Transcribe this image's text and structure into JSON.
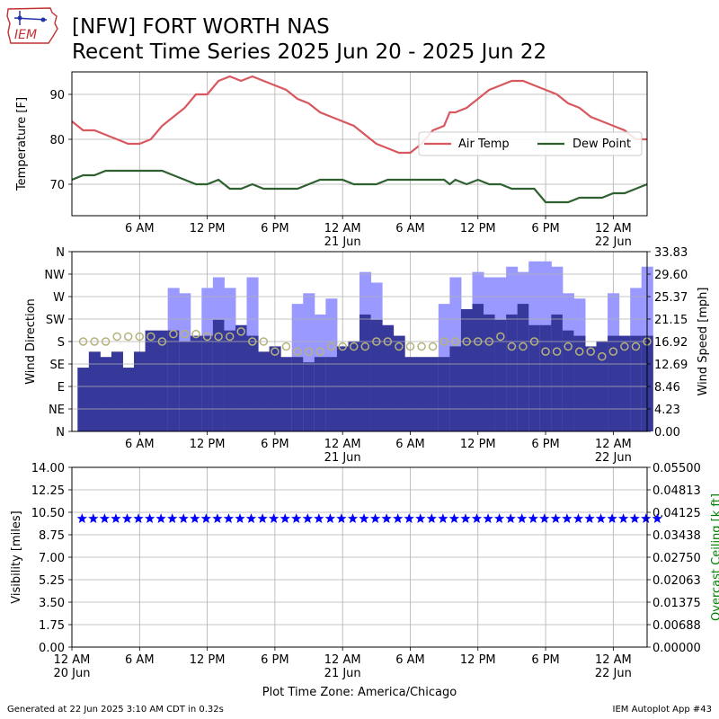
{
  "header": {
    "title_line1": "[NFW] FORT WORTH NAS",
    "title_line2": "Recent Time Series 2025 Jun 20 - 2025 Jun 22",
    "logo_text": "IEM"
  },
  "footer": {
    "generated": "Generated at 22 Jun 2025 3:10 AM CDT in 0.32s",
    "app": "IEM Autoplot App #43",
    "timezone": "Plot Time Zone: America/Chicago"
  },
  "colors": {
    "air_temp": "#d9575e",
    "dew_point": "#2f6130",
    "wind_gust": "#9a99ff",
    "wind_speed": "#36389a",
    "wind_dir": "#b6b27c",
    "visibility": "#0000ff",
    "ceiling_axis": "#008000",
    "grid": "#b0b0b0"
  },
  "chart_data": [
    {
      "type": "line",
      "panel": "temperature",
      "ylabel": "Temperature [F]",
      "ylim": [
        63,
        95
      ],
      "yticks": [
        70,
        80,
        90
      ],
      "xlim_hours": [
        0,
        51
      ],
      "xticks": [
        {
          "h": 6,
          "label": "6 AM"
        },
        {
          "h": 12,
          "label": "12 PM"
        },
        {
          "h": 18,
          "label": "6 PM"
        },
        {
          "h": 24,
          "label": "12 AM",
          "sub": "21 Jun"
        },
        {
          "h": 30,
          "label": "6 AM"
        },
        {
          "h": 36,
          "label": "12 PM"
        },
        {
          "h": 42,
          "label": "6 PM"
        },
        {
          "h": 48,
          "label": "12 AM",
          "sub": "22 Jun"
        }
      ],
      "legend": "right",
      "series": [
        {
          "name": "Air Temp",
          "x": [
            0,
            1,
            2,
            3,
            4,
            5,
            6,
            7,
            8,
            9,
            10,
            11,
            12,
            13,
            14,
            15,
            16,
            17,
            18,
            19,
            20,
            21,
            22,
            23,
            24,
            25,
            26,
            27,
            28,
            29,
            30,
            31,
            32,
            33,
            33.5,
            34,
            35,
            36,
            37,
            38,
            39,
            40,
            41,
            42,
            43,
            44,
            45,
            46,
            47,
            48,
            49,
            50,
            51
          ],
          "y": [
            84,
            82,
            82,
            81,
            80,
            79,
            79,
            80,
            83,
            85,
            87,
            90,
            90,
            93,
            94,
            93,
            94,
            93,
            92,
            91,
            89,
            88,
            86,
            85,
            84,
            83,
            81,
            79,
            78,
            77,
            77,
            79,
            82,
            83,
            86,
            86,
            87,
            89,
            91,
            92,
            93,
            93,
            92,
            91,
            90,
            88,
            87,
            85,
            84,
            83,
            82,
            80,
            80
          ]
        },
        {
          "name": "Dew Point",
          "x": [
            0,
            1,
            2,
            3,
            4,
            5,
            6,
            7,
            8,
            9,
            10,
            11,
            12,
            13,
            14,
            15,
            16,
            17,
            18,
            19,
            20,
            21,
            22,
            23,
            24,
            25,
            26,
            27,
            28,
            29,
            30,
            31,
            32,
            33,
            33.5,
            34,
            35,
            36,
            37,
            38,
            39,
            40,
            41,
            42,
            43,
            44,
            45,
            46,
            47,
            48,
            49,
            50,
            51
          ],
          "y": [
            71,
            72,
            72,
            73,
            73,
            73,
            73,
            73,
            73,
            72,
            71,
            70,
            70,
            71,
            69,
            69,
            70,
            69,
            69,
            69,
            69,
            70,
            71,
            71,
            71,
            70,
            70,
            70,
            71,
            71,
            71,
            71,
            71,
            71,
            70,
            71,
            70,
            71,
            70,
            70,
            69,
            69,
            69,
            66,
            66,
            66,
            67,
            67,
            67,
            68,
            68,
            69,
            70
          ]
        }
      ]
    },
    {
      "type": "bar",
      "panel": "wind",
      "ylabel_left": "Wind Direction",
      "ylabel_right": "Wind Speed [mph]",
      "dir_ticks": [
        "N",
        "NE",
        "E",
        "SE",
        "S",
        "SW",
        "W",
        "NW",
        "N"
      ],
      "speed_ticks": [
        "0.00",
        "4.23",
        "8.46",
        "12.69",
        "16.92",
        "21.15",
        "25.37",
        "29.60",
        "33.83"
      ],
      "speed_max": 33.83,
      "xlim_hours": [
        0,
        51
      ],
      "hours": [
        0,
        1,
        2,
        3,
        4,
        5,
        6,
        7,
        8,
        9,
        10,
        11,
        12,
        13,
        14,
        15,
        16,
        17,
        18,
        19,
        20,
        21,
        22,
        23,
        24,
        25,
        26,
        27,
        28,
        29,
        30,
        31,
        32,
        33,
        34,
        35,
        36,
        37,
        38,
        39,
        40,
        41,
        42,
        43,
        44,
        45,
        46,
        47,
        48,
        49,
        50
      ],
      "gust_mph": [
        0,
        0,
        0,
        0,
        0,
        0,
        0,
        0,
        27,
        26,
        0,
        27,
        29,
        27,
        0,
        29,
        0,
        0,
        0,
        24,
        26,
        22,
        25,
        0,
        0,
        30,
        28,
        0,
        0,
        0,
        0,
        0,
        24,
        29,
        0,
        30,
        29,
        29,
        31,
        30,
        32,
        32,
        31,
        26,
        25,
        0,
        0,
        26,
        0,
        27,
        31
      ],
      "speed_mph": [
        12,
        15,
        14,
        15,
        12,
        15,
        19,
        19,
        19,
        17,
        18,
        18,
        21,
        19,
        20,
        18,
        15,
        16,
        14,
        14,
        13,
        14,
        14,
        16,
        17,
        22,
        21,
        20,
        18,
        14,
        14,
        14,
        14,
        16,
        23,
        24,
        22,
        21,
        22,
        24,
        20,
        20,
        22,
        19,
        18,
        16,
        17,
        18,
        18,
        18,
        18
      ],
      "dir_deg": [
        180,
        180,
        180,
        190,
        190,
        190,
        190,
        180,
        195,
        195,
        195,
        190,
        190,
        190,
        200,
        180,
        180,
        160,
        170,
        160,
        160,
        160,
        170,
        170,
        170,
        170,
        180,
        180,
        170,
        170,
        170,
        170,
        180,
        180,
        180,
        180,
        180,
        190,
        170,
        170,
        180,
        160,
        160,
        170,
        160,
        160,
        150,
        160,
        170,
        170,
        180
      ]
    },
    {
      "type": "scatter",
      "panel": "visibility",
      "ylabel_left": "Visibility [miles]",
      "ylabel_right": "Overcast Ceiling [k ft]",
      "vis_ticks": [
        "0.00",
        "1.75",
        "3.50",
        "5.25",
        "7.00",
        "8.75",
        "10.50",
        "12.25",
        "14.00"
      ],
      "ceil_ticks": [
        "0.00000",
        "0.00688",
        "0.01375",
        "0.02063",
        "0.02750",
        "0.03438",
        "0.04125",
        "0.04813",
        "0.05500"
      ],
      "ylim": [
        0,
        14
      ],
      "xlim_hours": [
        0,
        51
      ],
      "xticks": [
        {
          "h": 0,
          "label": "12 AM",
          "sub": "20 Jun"
        },
        {
          "h": 6,
          "label": "6 AM"
        },
        {
          "h": 12,
          "label": "12 PM"
        },
        {
          "h": 18,
          "label": "6 PM"
        },
        {
          "h": 24,
          "label": "12 AM",
          "sub": "21 Jun"
        },
        {
          "h": 30,
          "label": "6 AM"
        },
        {
          "h": 36,
          "label": "12 PM"
        },
        {
          "h": 42,
          "label": "6 PM"
        },
        {
          "h": 48,
          "label": "12 AM",
          "sub": "22 Jun"
        }
      ],
      "visibility_miles": 10
    }
  ]
}
